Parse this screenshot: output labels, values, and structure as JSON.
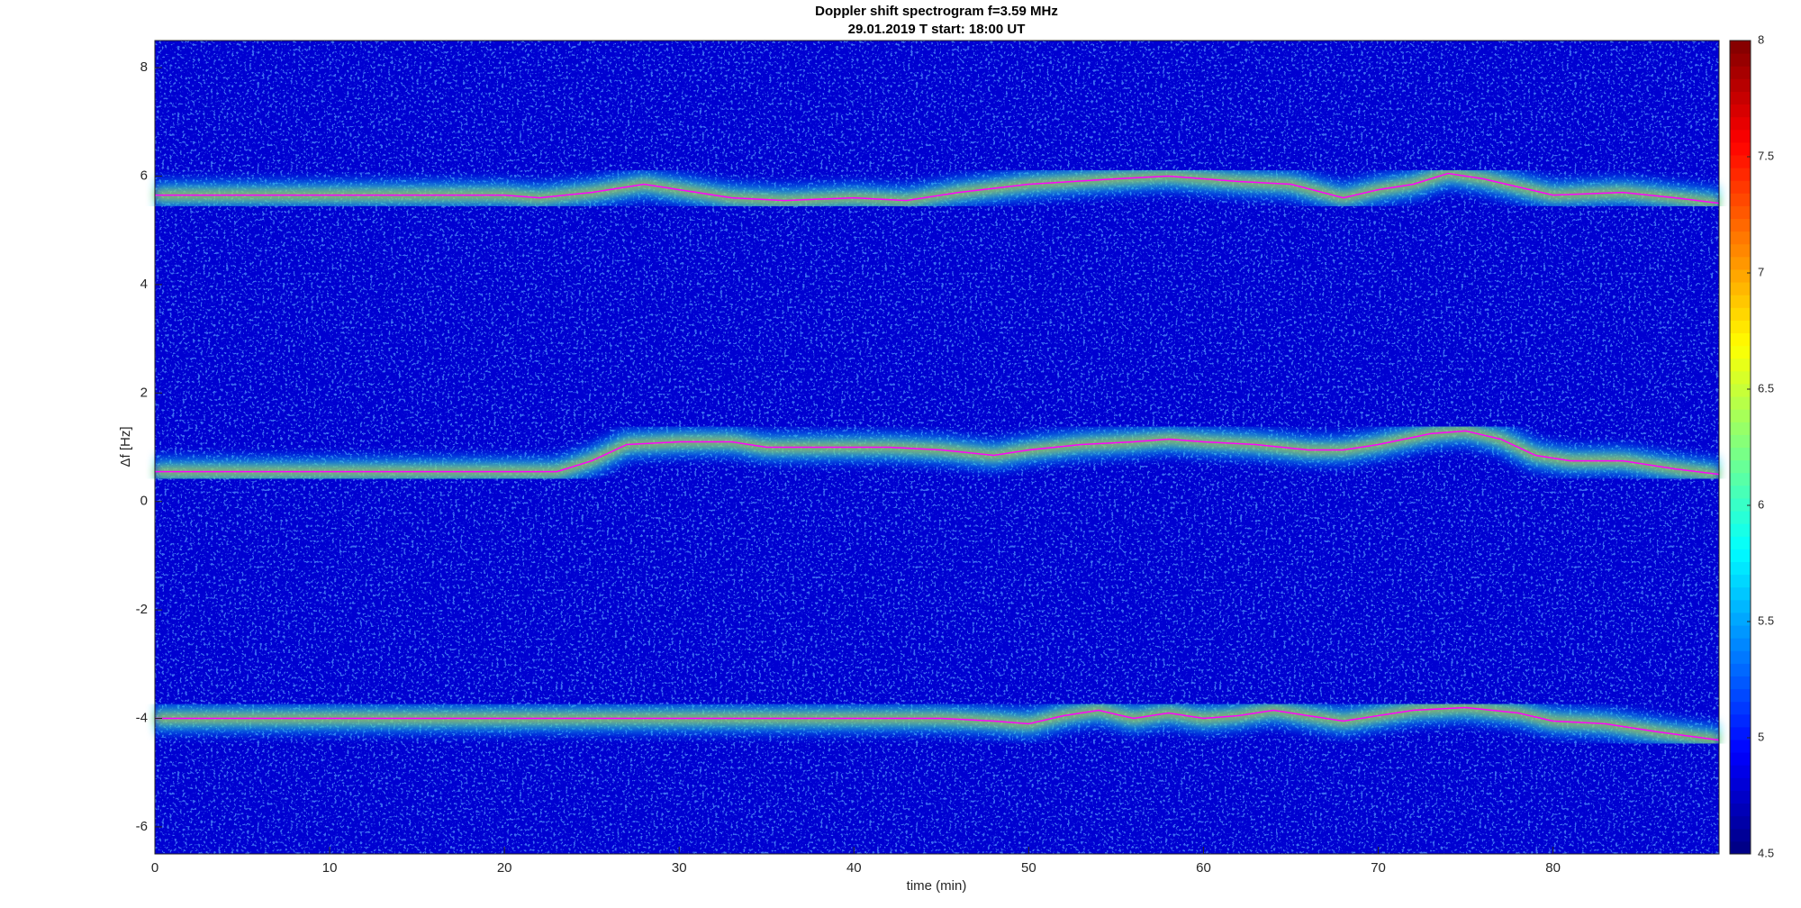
{
  "chart_data": {
    "type": "spectrogram",
    "title": "Doppler shift spectrogram f=3.59 MHz",
    "subtitle": "29.01.2019   T start: 18:00 UT",
    "x_label": "time (min)",
    "y_label": "Δf [Hz]",
    "xlim": [
      0,
      89.5
    ],
    "xticks": [
      0,
      10,
      20,
      30,
      40,
      50,
      60,
      70,
      80
    ],
    "ylim": [
      -6.5,
      8.5
    ],
    "yticks": [
      -6,
      -4,
      -2,
      0,
      2,
      4,
      6,
      8
    ],
    "colormap": "jet",
    "clim": [
      4.5,
      8
    ],
    "cticks": [
      4.5,
      5,
      5.5,
      6,
      6.5,
      7,
      7.5,
      8
    ],
    "series": [
      {
        "color": "#ff00ff",
        "x": [
          0,
          10,
          20,
          22,
          25,
          28,
          30,
          33,
          36,
          40,
          43,
          46,
          50,
          55,
          58,
          62,
          65,
          68,
          70,
          72,
          74,
          76,
          78,
          80,
          84,
          87,
          89.5
        ],
        "values": [
          5.65,
          5.65,
          5.65,
          5.6,
          5.7,
          5.85,
          5.75,
          5.6,
          5.55,
          5.6,
          5.55,
          5.7,
          5.85,
          5.95,
          6.0,
          5.9,
          5.85,
          5.6,
          5.75,
          5.85,
          6.05,
          5.95,
          5.8,
          5.65,
          5.7,
          5.6,
          5.5
        ]
      },
      {
        "color": "#ff00ff",
        "x": [
          0,
          10,
          20,
          23,
          25,
          27,
          30,
          33,
          35,
          38,
          42,
          45,
          48,
          50,
          53,
          56,
          58,
          60,
          63,
          66,
          68,
          70,
          73,
          75,
          77,
          79,
          81,
          84,
          87,
          89.5
        ],
        "values": [
          0.55,
          0.55,
          0.55,
          0.55,
          0.75,
          1.05,
          1.1,
          1.1,
          1.0,
          1.0,
          1.0,
          0.95,
          0.85,
          0.95,
          1.05,
          1.1,
          1.15,
          1.1,
          1.05,
          0.95,
          0.95,
          1.05,
          1.25,
          1.3,
          1.15,
          0.85,
          0.75,
          0.75,
          0.6,
          0.5
        ]
      },
      {
        "color": "#ff00ff",
        "x": [
          0,
          20,
          40,
          45,
          48,
          50,
          52,
          54,
          56,
          58,
          60,
          62,
          64,
          66,
          68,
          70,
          72,
          75,
          78,
          80,
          83,
          86,
          89.5
        ],
        "values": [
          -4.0,
          -4.0,
          -4.0,
          -4.0,
          -4.05,
          -4.1,
          -3.95,
          -3.85,
          -4.0,
          -3.9,
          -4.0,
          -3.95,
          -3.85,
          -3.95,
          -4.05,
          -3.95,
          -3.85,
          -3.8,
          -3.9,
          -4.05,
          -4.1,
          -4.25,
          -4.4
        ]
      }
    ]
  }
}
